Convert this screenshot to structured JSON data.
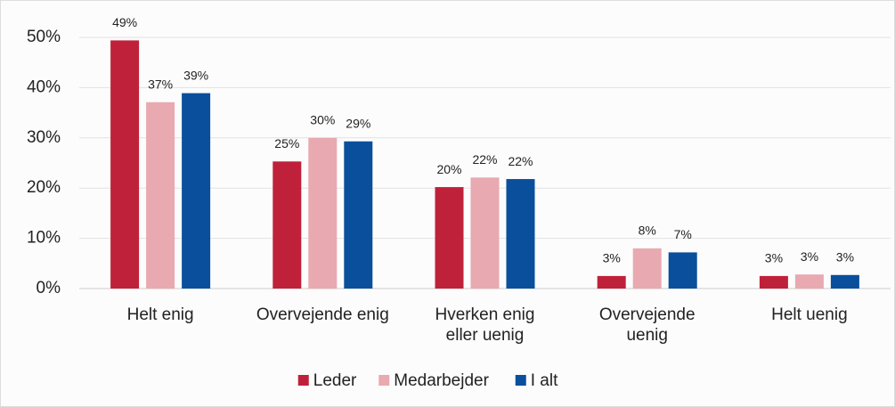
{
  "chart_data": {
    "type": "bar",
    "categories": [
      "Helt enig",
      "Overvejende enig",
      "Hverken enig\neller uenig",
      "Overvejende\nuenig",
      "Helt uenig"
    ],
    "series": [
      {
        "name": "Leder",
        "color": "#c0213a",
        "values": [
          49.4,
          25.3,
          20.2,
          2.5,
          2.5
        ],
        "value_labels": [
          "49%",
          "25%",
          "20%",
          "3%",
          "3%"
        ]
      },
      {
        "name": "Medarbejder",
        "color": "#e8a9b0",
        "values": [
          37.1,
          30,
          22.1,
          8,
          2.8
        ],
        "value_labels": [
          "37%",
          "30%",
          "22%",
          "8%",
          "3%"
        ]
      },
      {
        "name": "I alt",
        "color": "#0a4f9c",
        "values": [
          38.9,
          29.3,
          21.8,
          7.2,
          2.7
        ],
        "value_labels": [
          "39%",
          "29%",
          "22%",
          "7%",
          "3%"
        ]
      }
    ],
    "ylim": [
      0,
      50
    ],
    "yticks": [
      {
        "value": 0,
        "label": "0%"
      },
      {
        "value": 10,
        "label": "10%"
      },
      {
        "value": 20,
        "label": "20%"
      },
      {
        "value": 30,
        "label": "30%"
      },
      {
        "value": 40,
        "label": "40%"
      },
      {
        "value": 50,
        "label": "50%"
      }
    ],
    "grid": true,
    "legend": "bottom"
  }
}
